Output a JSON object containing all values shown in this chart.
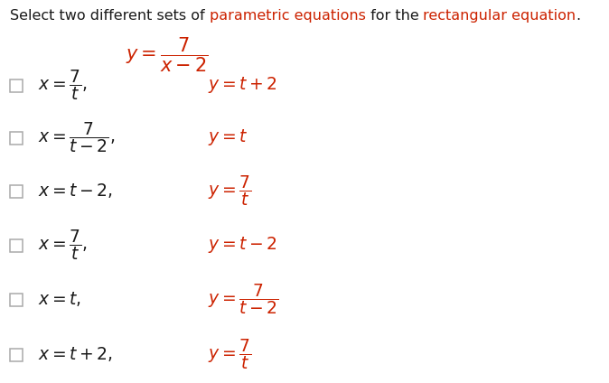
{
  "bg_color": "#ffffff",
  "title_parts": [
    {
      "text": "Select two different sets of ",
      "color": "#1a1a1a"
    },
    {
      "text": "parametric equations",
      "color": "#cc2200"
    },
    {
      "text": " for the ",
      "color": "#1a1a1a"
    },
    {
      "text": "rectangular equation",
      "color": "#cc2200"
    },
    {
      "text": ".",
      "color": "#1a1a1a"
    }
  ],
  "title_fontsize": 11.5,
  "main_eq_color": "#cc2200",
  "black": "#1a1a1a",
  "red": "#cc2200",
  "options": [
    {
      "x_parts": [
        {
          "t": "x = ",
          "c": "#1a1a1a"
        },
        {
          "t": "\\frac{7}{t}",
          "c": "#1a1a1a"
        },
        {
          "t": ",",
          "c": "#1a1a1a"
        }
      ],
      "y_parts": [
        {
          "t": "y = t + 2",
          "c": "#cc2200"
        }
      ],
      "x_latex": "$x = \\dfrac{7}{t},$",
      "y_latex": "$y = t + 2$"
    },
    {
      "x_latex": "$x = \\dfrac{7}{t - 2},$",
      "y_latex": "$y = t$"
    },
    {
      "x_latex": "$x = t - 2,$",
      "y_latex": "$y = \\dfrac{7}{t}$"
    },
    {
      "x_latex": "$x = \\dfrac{7}{t},$",
      "y_latex": "$y = t - 2$"
    },
    {
      "x_latex": "$x = t,$",
      "y_latex": "$y = \\dfrac{7}{t - 2}$"
    },
    {
      "x_latex": "$x = t + 2,$",
      "y_latex": "$y = \\dfrac{7}{t}$"
    }
  ],
  "checkbox_size": 14,
  "option_fontsize": 13.5
}
